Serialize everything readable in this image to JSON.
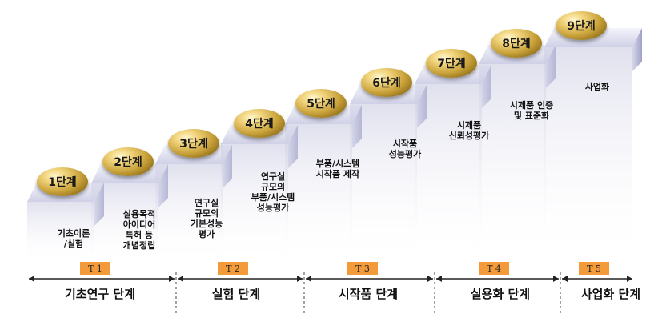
{
  "steps": [
    {
      "label": "1단계",
      "desc": "기초이론\n/실험"
    },
    {
      "label": "2단계",
      "desc": "실용목적\n아이디어\n특허 등\n개념정립"
    },
    {
      "label": "3단계",
      "desc": "연구실\n규모의\n기본성능\n평가"
    },
    {
      "label": "4단계",
      "desc": "연구실\n규모의\n부품/시스템\n성능평가"
    },
    {
      "label": "5단계",
      "desc": "부품/시스템\n시작품 제작"
    },
    {
      "label": "6단계",
      "desc": "시작품\n성능평가"
    },
    {
      "label": "7단계",
      "desc": "시제품\n신뢰성평가"
    },
    {
      "label": "8단계",
      "desc": "시제품 인증\n및 표준화"
    },
    {
      "label": "9단계",
      "desc": "사업화"
    }
  ],
  "t_labels": [
    "T 1",
    "T 2",
    "T 3",
    "T 4",
    "T 5"
  ],
  "phases": [
    "기초연구 단계",
    "실험 단계",
    "시작품 단계",
    "실용화 단계",
    "사업화 단계"
  ],
  "colors": {
    "step_top": "#e4e4f2",
    "step_side": "#b9bad8",
    "ball": "#c9a23a",
    "t_box": "#f39a3a",
    "arrow": "#222222"
  }
}
